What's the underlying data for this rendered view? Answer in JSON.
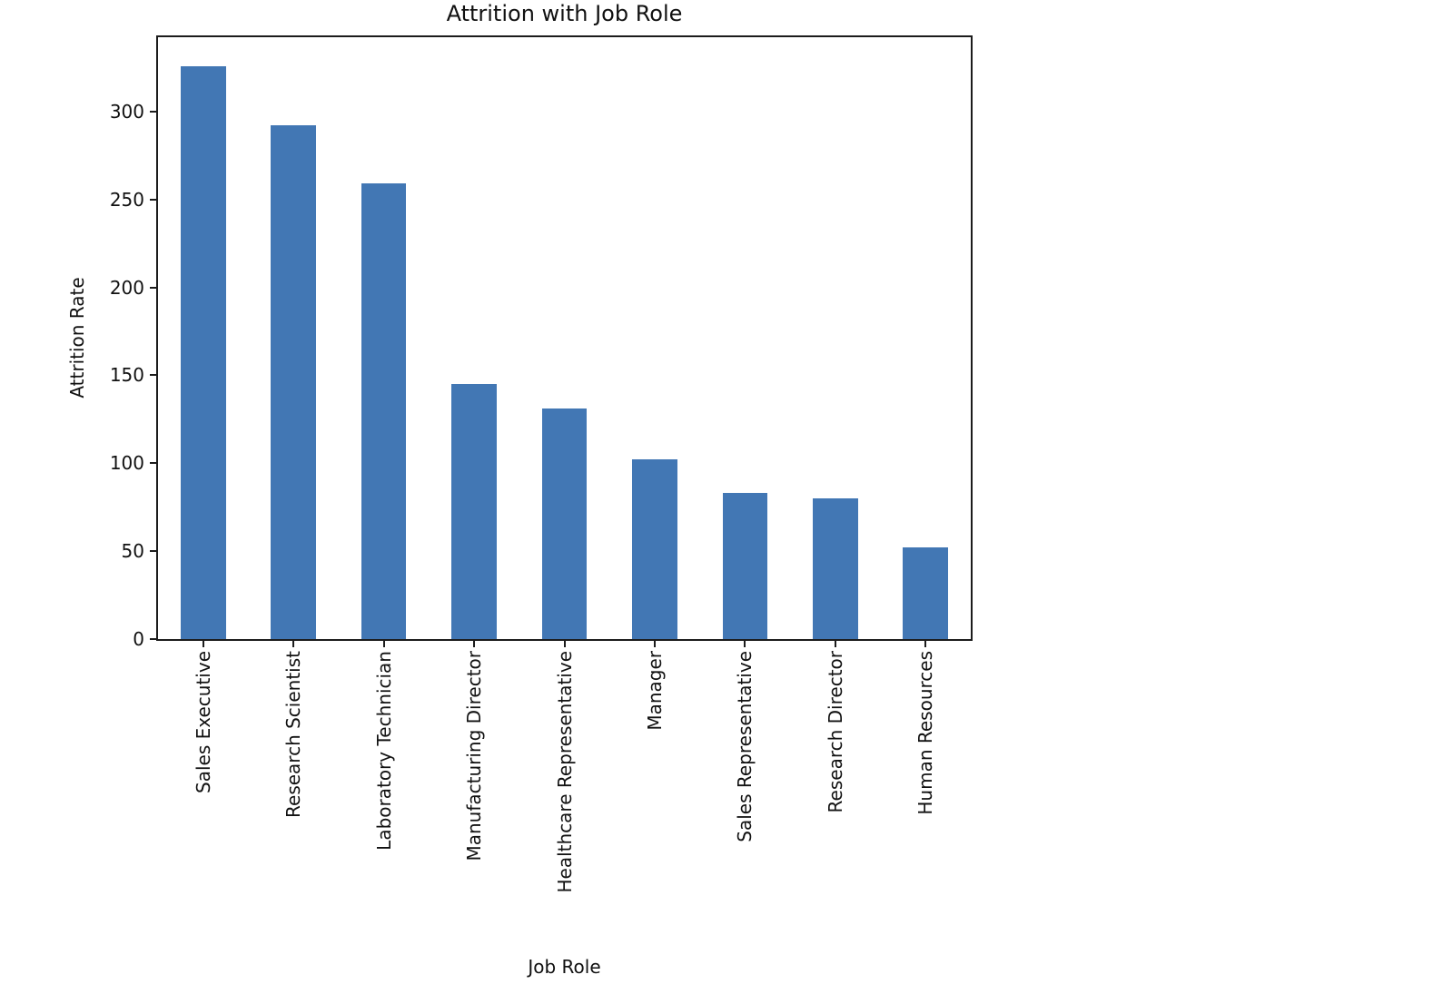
{
  "chart_data": {
    "type": "bar",
    "title": "Attrition with Job Role",
    "xlabel": "Job Role",
    "ylabel": "Attrition Rate",
    "categories": [
      "Sales Executive",
      "Research Scientist",
      "Laboratory Technician",
      "Manufacturing Director",
      "Healthcare Representative",
      "Manager",
      "Sales Representative",
      "Research Director",
      "Human Resources"
    ],
    "values": [
      326,
      292,
      259,
      145,
      131,
      102,
      83,
      80,
      52
    ],
    "yticks": [
      0,
      50,
      100,
      150,
      200,
      250,
      300
    ],
    "ylim": [
      0,
      342.3
    ],
    "bar_color": "#4277b4",
    "x_tick_rotation": 90,
    "grid": false,
    "legend_position": "none",
    "background_color": "#ffffff"
  }
}
